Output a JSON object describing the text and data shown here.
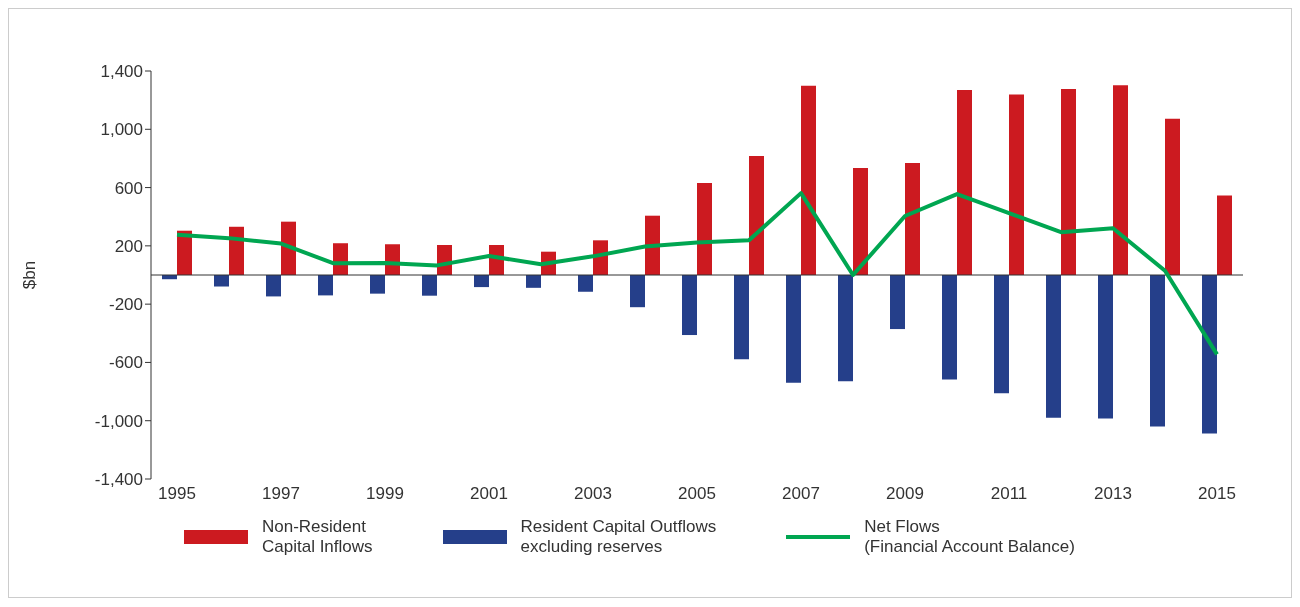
{
  "chart_data": {
    "type": "bar",
    "ylabel": "$bn",
    "categories": [
      "1995",
      null,
      "1997",
      null,
      "1999",
      null,
      "2001",
      null,
      "2003",
      null,
      "2005",
      null,
      "2007",
      null,
      "2009",
      null,
      "2011",
      null,
      "2013",
      null,
      "2015"
    ],
    "ylim": [
      -1400,
      1400
    ],
    "yticks": [
      {
        "value": -1400,
        "label": "-1,400"
      },
      {
        "value": -1000,
        "label": "-1,000"
      },
      -600,
      -200,
      200,
      600,
      {
        "value": 1000,
        "label": "1,000"
      },
      {
        "value": 1400,
        "label": "1,400"
      }
    ],
    "grid": false,
    "legend": "bottom",
    "series": [
      {
        "name": "Non-Resident\nCapital Inflows",
        "color": "#cc1a20",
        "values": [
          304,
          331,
          366,
          218,
          211,
          206,
          206,
          160,
          238,
          407,
          631,
          817,
          1298,
          734,
          768,
          1269,
          1239,
          1276,
          1303,
          1072,
          545
        ]
      },
      {
        "name": "Resident Capital Outflows\nexcluding reserves",
        "color": "#253f8a",
        "values": [
          -29,
          -79,
          -147,
          -140,
          -128,
          -142,
          -83,
          -88,
          -115,
          -221,
          -412,
          -579,
          -739,
          -729,
          -371,
          -717,
          -812,
          -979,
          -984,
          -1040,
          -1087
        ]
      },
      {
        "name": "Net Flows\n(Financial Account Balance)",
        "color": "#00a651",
        "type": "line",
        "values": [
          277,
          253,
          216,
          81,
          83,
          66,
          130,
          74,
          128,
          196,
          223,
          238,
          562,
          0,
          405,
          555,
          425,
          294,
          321,
          29,
          -545
        ]
      }
    ]
  }
}
